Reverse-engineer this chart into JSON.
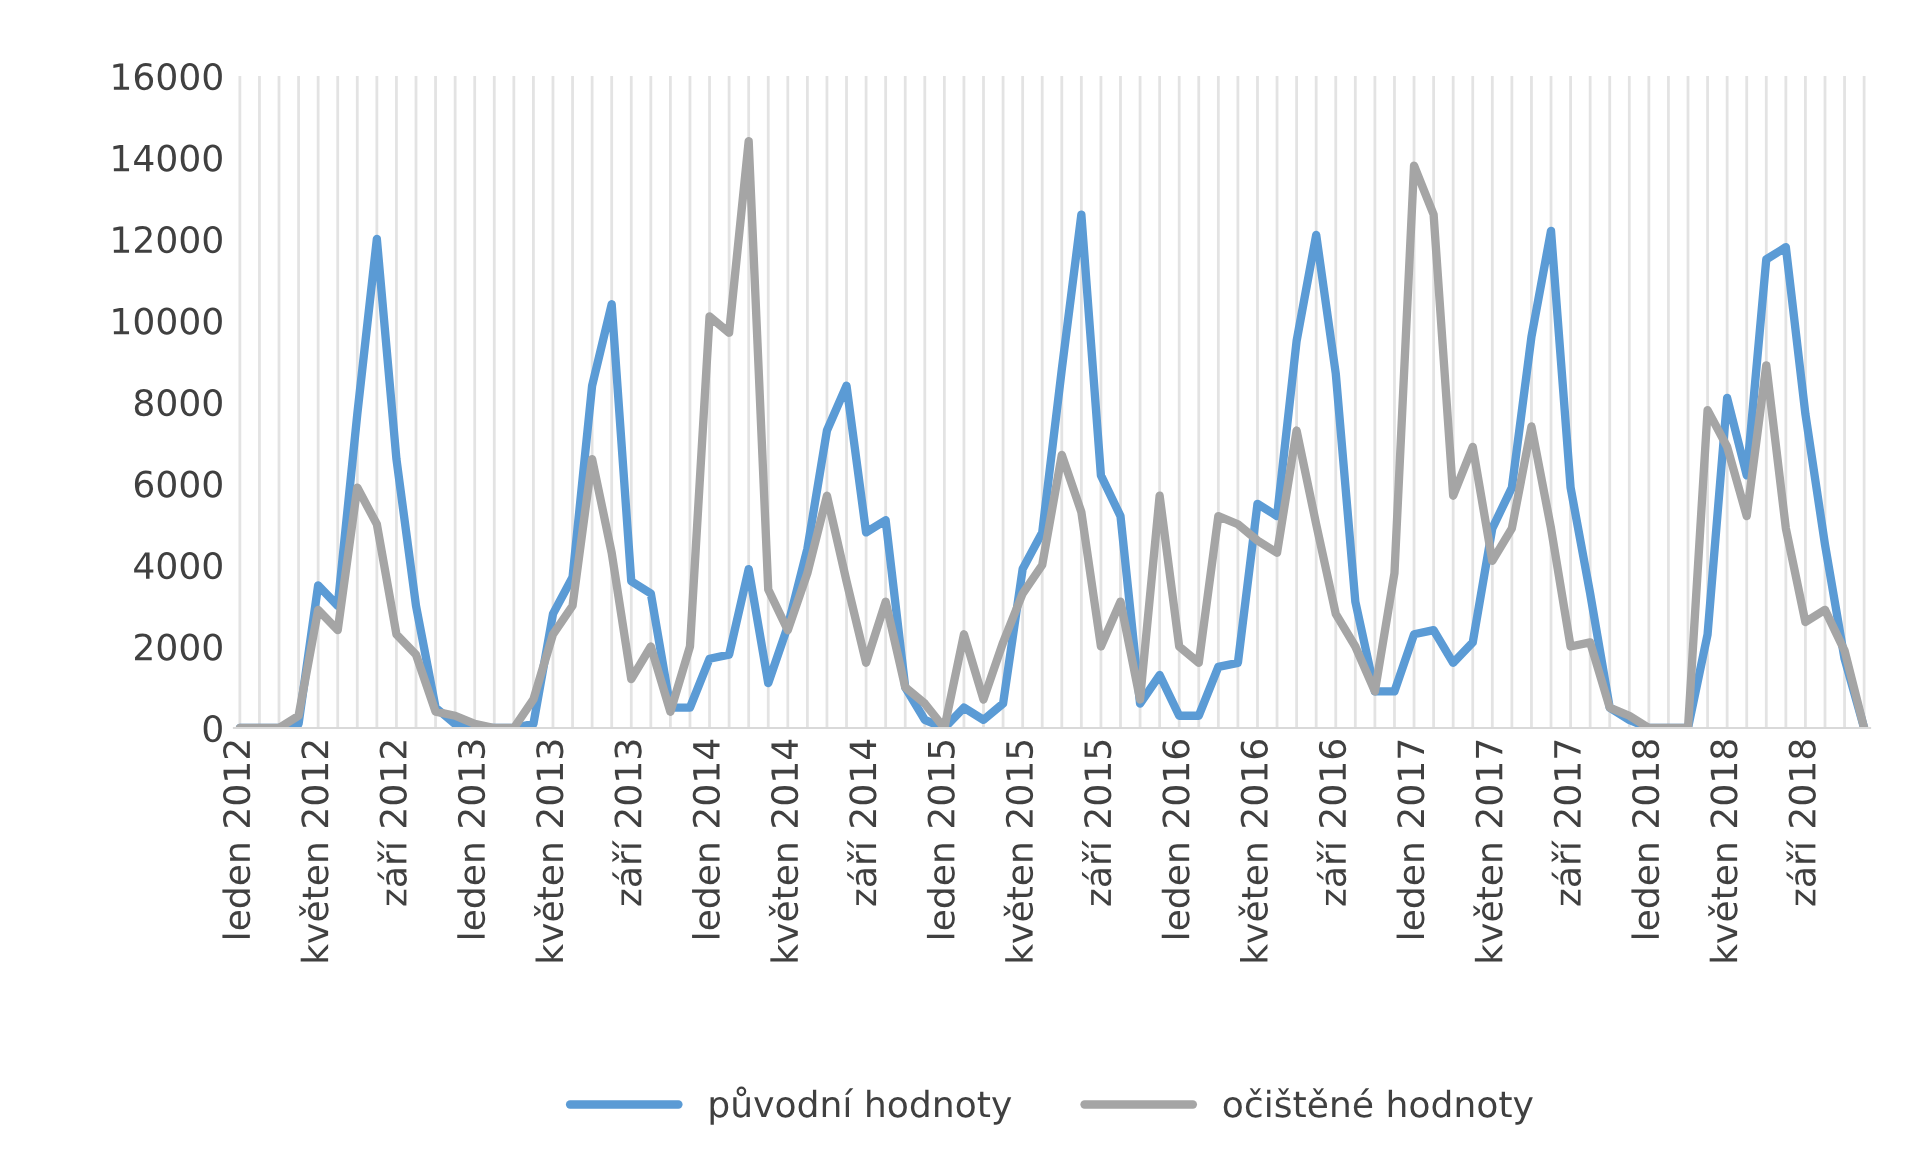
{
  "chart_data": {
    "type": "line",
    "categories": [
      "leden 2012",
      null,
      null,
      null,
      "květen 2012",
      null,
      null,
      null,
      "září 2012",
      null,
      null,
      null,
      "leden 2013",
      null,
      null,
      null,
      "květen 2013",
      null,
      null,
      null,
      "září 2013",
      null,
      null,
      null,
      "leden 2014",
      null,
      null,
      null,
      "květen 2014",
      null,
      null,
      null,
      "září 2014",
      null,
      null,
      null,
      "leden 2015",
      null,
      null,
      null,
      "květen 2015",
      null,
      null,
      null,
      "září 2015",
      null,
      null,
      null,
      "leden 2016",
      null,
      null,
      null,
      "květen 2016",
      null,
      null,
      null,
      "září 2016",
      null,
      null,
      null,
      "leden 2017",
      null,
      null,
      null,
      "květen 2017",
      null,
      null,
      null,
      "září 2017",
      null,
      null,
      null,
      "leden 2018",
      null,
      null,
      null,
      "květen 2018",
      null,
      null,
      null,
      "září 2018",
      null,
      null,
      null
    ],
    "series": [
      {
        "name": "původní hodnoty",
        "color": "#5b9bd5",
        "values": [
          0,
          0,
          0,
          100,
          3500,
          3000,
          7700,
          12000,
          6600,
          3000,
          500,
          100,
          0,
          0,
          0,
          100,
          2800,
          3700,
          8400,
          10400,
          3600,
          3300,
          500,
          500,
          1700,
          1800,
          3900,
          1100,
          2500,
          4400,
          7300,
          8400,
          4800,
          5100,
          1000,
          200,
          0,
          500,
          200,
          600,
          3900,
          4800,
          8800,
          12600,
          6200,
          5200,
          600,
          1300,
          300,
          300,
          1500,
          1600,
          5500,
          5200,
          9500,
          12100,
          8700,
          3100,
          900,
          900,
          2300,
          2400,
          1600,
          2100,
          4900,
          5900,
          9600,
          12200,
          5900,
          3300,
          500,
          200,
          0,
          0,
          0,
          2300,
          8100,
          6200,
          11500,
          11800,
          7700,
          4500,
          1700,
          0
        ]
      },
      {
        "name": "očištěné hodnoty",
        "color": "#a5a5a5",
        "values": [
          0,
          0,
          0,
          300,
          2900,
          2400,
          5900,
          5000,
          2300,
          1800,
          400,
          300,
          100,
          0,
          0,
          700,
          2300,
          3000,
          6600,
          4300,
          1200,
          2000,
          400,
          2000,
          10100,
          9700,
          14400,
          3400,
          2400,
          3800,
          5700,
          3600,
          1600,
          3100,
          1000,
          600,
          0,
          2300,
          700,
          2100,
          3300,
          4000,
          6700,
          5300,
          2000,
          3100,
          700,
          5700,
          2000,
          1600,
          5200,
          5000,
          4600,
          4300,
          7300,
          5000,
          2800,
          2000,
          900,
          3800,
          13800,
          12600,
          5700,
          6900,
          4100,
          4900,
          7400,
          4900,
          2000,
          2100,
          500,
          300,
          0,
          0,
          0,
          7800,
          6900,
          5200,
          8900,
          4900,
          2600,
          2900,
          1900,
          0
        ]
      }
    ],
    "ylim": [
      0,
      16000
    ],
    "yticks": [
      0,
      2000,
      4000,
      6000,
      8000,
      10000,
      12000,
      14000,
      16000
    ],
    "grid": "x",
    "legend": "bottom",
    "marker": "none",
    "line_style": "solid"
  }
}
